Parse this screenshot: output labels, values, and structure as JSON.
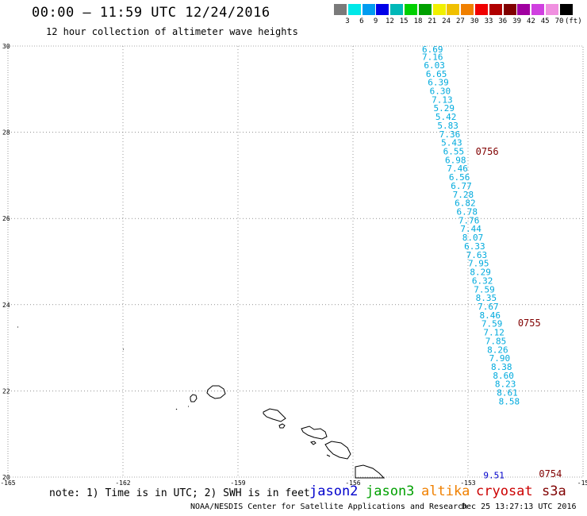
{
  "header": {
    "title": "00:00 — 11:59 UTC 12/24/2016",
    "subtitle": "12 hour collection of altimeter wave heights"
  },
  "color_scale": {
    "unit": "(ft)",
    "swatches": [
      "#7a7a7a",
      "#00e8e8",
      "#009cf0",
      "#0000e8",
      "#00b8b8",
      "#00d000",
      "#00a000",
      "#f0f000",
      "#f0c000",
      "#f08000",
      "#f00000",
      "#b00000",
      "#800000",
      "#a000a0",
      "#d040e0",
      "#f090e0",
      "#000000"
    ],
    "labels": [
      "3",
      "6",
      "9",
      "12",
      "15",
      "18",
      "21",
      "24",
      "27",
      "30",
      "33",
      "36",
      "39",
      "42",
      "45",
      "70"
    ]
  },
  "chart_data": {
    "type": "scatter",
    "title": "00:00 — 11:59 UTC 12/24/2016",
    "subtitle": "12 hour collection of altimeter wave heights",
    "xlim": [
      -165,
      -150
    ],
    "ylim": [
      20,
      30
    ],
    "grid": true,
    "x_ticks": [
      "-165",
      "-162",
      "-159",
      "-156",
      "-153",
      "-15"
    ],
    "y_ticks": [
      "30",
      "28",
      "26",
      "24",
      "22",
      "20"
    ],
    "series": [
      {
        "name": "jason2",
        "color": "#0000cc",
        "points": [
          {
            "lon": -152.6,
            "lat": 20.05,
            "value": "9.51"
          }
        ]
      },
      {
        "name": "jason3",
        "color": "#00a000",
        "points": []
      },
      {
        "name": "altika",
        "color": "#f08000",
        "points": []
      },
      {
        "name": "cryosat",
        "color": "#cc0000",
        "points": []
      },
      {
        "name": "s3a",
        "color": "#800000",
        "points": []
      },
      {
        "name": "",
        "color": "#00aadd",
        "points": [
          {
            "lon": -154.2,
            "lat": 29.93,
            "value": "6.69"
          },
          {
            "lon": -154.2,
            "lat": 29.75,
            "value": "7.16"
          },
          {
            "lon": -154.15,
            "lat": 29.56,
            "value": "6.03"
          },
          {
            "lon": -154.1,
            "lat": 29.36,
            "value": "6.65"
          },
          {
            "lon": -154.05,
            "lat": 29.16,
            "value": "6.39"
          },
          {
            "lon": -154.0,
            "lat": 28.96,
            "value": "6.30"
          },
          {
            "lon": -153.95,
            "lat": 28.76,
            "value": "7.13"
          },
          {
            "lon": -153.9,
            "lat": 28.56,
            "value": "5.29"
          },
          {
            "lon": -153.85,
            "lat": 28.36,
            "value": "5.42"
          },
          {
            "lon": -153.8,
            "lat": 28.16,
            "value": "5.83"
          },
          {
            "lon": -153.75,
            "lat": 27.96,
            "value": "7.36"
          },
          {
            "lon": -153.7,
            "lat": 27.76,
            "value": "5.43"
          },
          {
            "lon": -153.65,
            "lat": 27.56,
            "value": "6.55"
          },
          {
            "lon": -153.6,
            "lat": 27.36,
            "value": "6.98"
          },
          {
            "lon": -153.55,
            "lat": 27.16,
            "value": "7.46"
          },
          {
            "lon": -153.5,
            "lat": 26.96,
            "value": "6.56"
          },
          {
            "lon": -153.45,
            "lat": 26.76,
            "value": "6.77"
          },
          {
            "lon": -153.4,
            "lat": 26.56,
            "value": "7.28"
          },
          {
            "lon": -153.35,
            "lat": 26.36,
            "value": "6.82"
          },
          {
            "lon": -153.3,
            "lat": 26.16,
            "value": "6.78"
          },
          {
            "lon": -153.25,
            "lat": 25.96,
            "value": "7.76"
          },
          {
            "lon": -153.2,
            "lat": 25.76,
            "value": "7.44"
          },
          {
            "lon": -153.15,
            "lat": 25.56,
            "value": "8.07"
          },
          {
            "lon": -153.1,
            "lat": 25.36,
            "value": "6.33"
          },
          {
            "lon": -153.05,
            "lat": 25.16,
            "value": "7.63"
          },
          {
            "lon": -153.0,
            "lat": 24.96,
            "value": "7.95"
          },
          {
            "lon": -152.95,
            "lat": 24.76,
            "value": "8.29"
          },
          {
            "lon": -152.9,
            "lat": 24.56,
            "value": "6.32"
          },
          {
            "lon": -152.85,
            "lat": 24.36,
            "value": "7.59"
          },
          {
            "lon": -152.8,
            "lat": 24.16,
            "value": "8.35"
          },
          {
            "lon": -152.75,
            "lat": 23.96,
            "value": "7.67"
          },
          {
            "lon": -152.7,
            "lat": 23.76,
            "value": "8.46"
          },
          {
            "lon": -152.65,
            "lat": 23.56,
            "value": "7.59"
          },
          {
            "lon": -152.6,
            "lat": 23.36,
            "value": "7.12"
          },
          {
            "lon": -152.55,
            "lat": 23.16,
            "value": "7.85"
          },
          {
            "lon": -152.5,
            "lat": 22.96,
            "value": "8.26"
          },
          {
            "lon": -152.45,
            "lat": 22.76,
            "value": "7.90"
          },
          {
            "lon": -152.4,
            "lat": 22.56,
            "value": "8.38"
          },
          {
            "lon": -152.35,
            "lat": 22.36,
            "value": "8.60"
          },
          {
            "lon": -152.3,
            "lat": 22.16,
            "value": "8.23"
          },
          {
            "lon": -152.25,
            "lat": 21.96,
            "value": "8.61"
          },
          {
            "lon": -152.2,
            "lat": 21.76,
            "value": "8.58"
          }
        ]
      }
    ],
    "time_labels": [
      {
        "lon": -152.8,
        "lat": 27.55,
        "text": "0756"
      },
      {
        "lon": -151.7,
        "lat": 23.57,
        "text": "0755"
      },
      {
        "lon": -151.15,
        "lat": 20.07,
        "text": "0754"
      }
    ]
  },
  "legend": {
    "note": "note: 1) Time is in UTC; 2) SWH is in feet",
    "satellites": [
      {
        "name": "jason2",
        "color": "#0000cc"
      },
      {
        "name": "jason3",
        "color": "#00a000"
      },
      {
        "name": "altika",
        "color": "#f08000"
      },
      {
        "name": "cryosat",
        "color": "#cc0000"
      },
      {
        "name": "s3a",
        "color": "#800000"
      }
    ]
  },
  "footer": {
    "credit": "NOAA/NESDIS Center for Satellite Applications and Research",
    "timestamp": "Dec 25 13:27:13 UTC 2016"
  }
}
